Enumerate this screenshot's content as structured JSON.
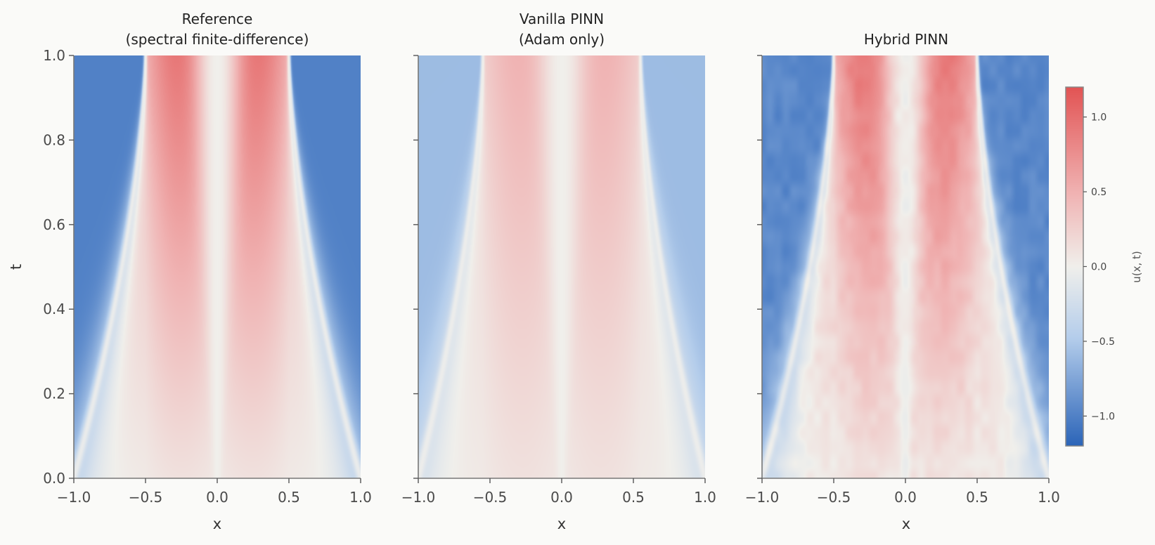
{
  "chart_data": [
    {
      "type": "heatmap",
      "title": "Reference\n(spectral finite-difference)",
      "xlabel": "x",
      "ylabel": "t",
      "xlim": [
        -1.0,
        1.0
      ],
      "ylim": [
        0.0,
        1.0
      ],
      "xticks": [
        "−1.0",
        "−0.5",
        "0.0",
        "0.5",
        "1.0"
      ],
      "yticks": [
        "0.0",
        "0.2",
        "0.4",
        "0.6",
        "0.8",
        "1.0"
      ],
      "field": "u(x, t)",
      "shock_positions_x": [
        -0.5,
        0.5
      ],
      "interior_max_value": 0.97,
      "exterior_value": -1.0,
      "noise": 0.0
    },
    {
      "type": "heatmap",
      "title": "Vanilla PINN\n(Adam only)",
      "xlabel": "x",
      "ylabel": "",
      "xlim": [
        -1.0,
        1.0
      ],
      "ylim": [
        0.0,
        1.0
      ],
      "xticks": [
        "−1.0",
        "−0.5",
        "0.0",
        "0.5",
        "1.0"
      ],
      "yticks": [],
      "field": "u(x, t)",
      "shock_positions_x": [
        -0.55,
        0.55
      ],
      "interior_max_value": 0.5,
      "exterior_value": -0.6,
      "noise": 0.0
    },
    {
      "type": "heatmap",
      "title": "Hybrid PINN",
      "xlabel": "x",
      "ylabel": "",
      "xlim": [
        -1.0,
        1.0
      ],
      "ylim": [
        0.0,
        1.0
      ],
      "xticks": [
        "−1.0",
        "−0.5",
        "0.0",
        "0.5",
        "1.0"
      ],
      "yticks": [],
      "field": "u(x, t)",
      "shock_positions_x": [
        -0.5,
        0.5
      ],
      "interior_max_value": 0.99,
      "exterior_value": -0.95,
      "noise": 0.06
    }
  ],
  "colorbar": {
    "label": "u(x, t)",
    "vmin": -1.2,
    "vmax": 1.2,
    "ticks": [
      {
        "value": 1.0,
        "label": "1.0"
      },
      {
        "value": 0.5,
        "label": "0.5"
      },
      {
        "value": 0.0,
        "label": "0.0"
      },
      {
        "value": -0.5,
        "label": "−0.5"
      },
      {
        "value": -1.0,
        "label": "−1.0"
      }
    ],
    "colors": {
      "low": "#2b64b8",
      "mid": "#f0efeb",
      "high": "#e25454"
    }
  }
}
